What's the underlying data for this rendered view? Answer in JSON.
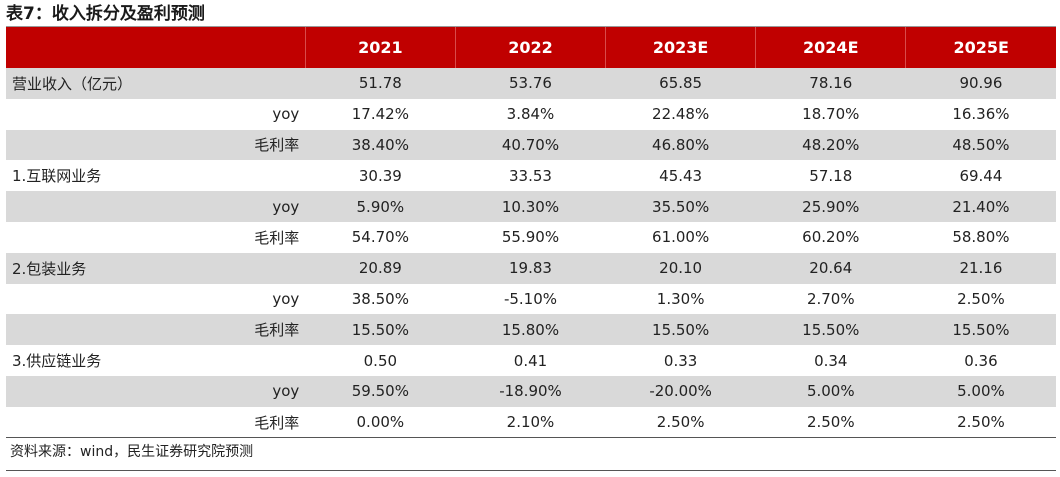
{
  "title": "表7：收入拆分及盈利预测",
  "table": {
    "header": [
      "",
      "2021",
      "2022",
      "2023E",
      "2024E",
      "2025E"
    ],
    "rows": [
      {
        "label": "营业收入（亿元）",
        "align": "left",
        "shade": true,
        "values": [
          "51.78",
          "53.76",
          "65.85",
          "78.16",
          "90.96"
        ]
      },
      {
        "label": "yoy",
        "align": "right",
        "shade": false,
        "values": [
          "17.42%",
          "3.84%",
          "22.48%",
          "18.70%",
          "16.36%"
        ]
      },
      {
        "label": "毛利率",
        "align": "right",
        "shade": true,
        "values": [
          "38.40%",
          "40.70%",
          "46.80%",
          "48.20%",
          "48.50%"
        ]
      },
      {
        "label": "1.互联网业务",
        "align": "left",
        "shade": false,
        "values": [
          "30.39",
          "33.53",
          "45.43",
          "57.18",
          "69.44"
        ]
      },
      {
        "label": "yoy",
        "align": "right",
        "shade": true,
        "values": [
          "5.90%",
          "10.30%",
          "35.50%",
          "25.90%",
          "21.40%"
        ]
      },
      {
        "label": "毛利率",
        "align": "right",
        "shade": false,
        "values": [
          "54.70%",
          "55.90%",
          "61.00%",
          "60.20%",
          "58.80%"
        ]
      },
      {
        "label": "2.包装业务",
        "align": "left",
        "shade": true,
        "values": [
          "20.89",
          "19.83",
          "20.10",
          "20.64",
          "21.16"
        ]
      },
      {
        "label": "yoy",
        "align": "right",
        "shade": false,
        "values": [
          "38.50%",
          "-5.10%",
          "1.30%",
          "2.70%",
          "2.50%"
        ]
      },
      {
        "label": "毛利率",
        "align": "right",
        "shade": true,
        "values": [
          "15.50%",
          "15.80%",
          "15.50%",
          "15.50%",
          "15.50%"
        ]
      },
      {
        "label": "3.供应链业务",
        "align": "left",
        "shade": false,
        "values": [
          "0.50",
          "0.41",
          "0.33",
          "0.34",
          "0.36"
        ]
      },
      {
        "label": "yoy",
        "align": "right",
        "shade": true,
        "values": [
          "59.50%",
          "-18.90%",
          "-20.00%",
          "5.00%",
          "5.00%"
        ]
      },
      {
        "label": "毛利率",
        "align": "right",
        "shade": false,
        "values": [
          "0.00%",
          "2.10%",
          "2.50%",
          "2.50%",
          "2.50%"
        ]
      }
    ]
  },
  "source": "资料来源：wind，民生证券研究院预测",
  "colors": {
    "header_bg": "#c00000",
    "shade_row": "#d9d9d9"
  }
}
